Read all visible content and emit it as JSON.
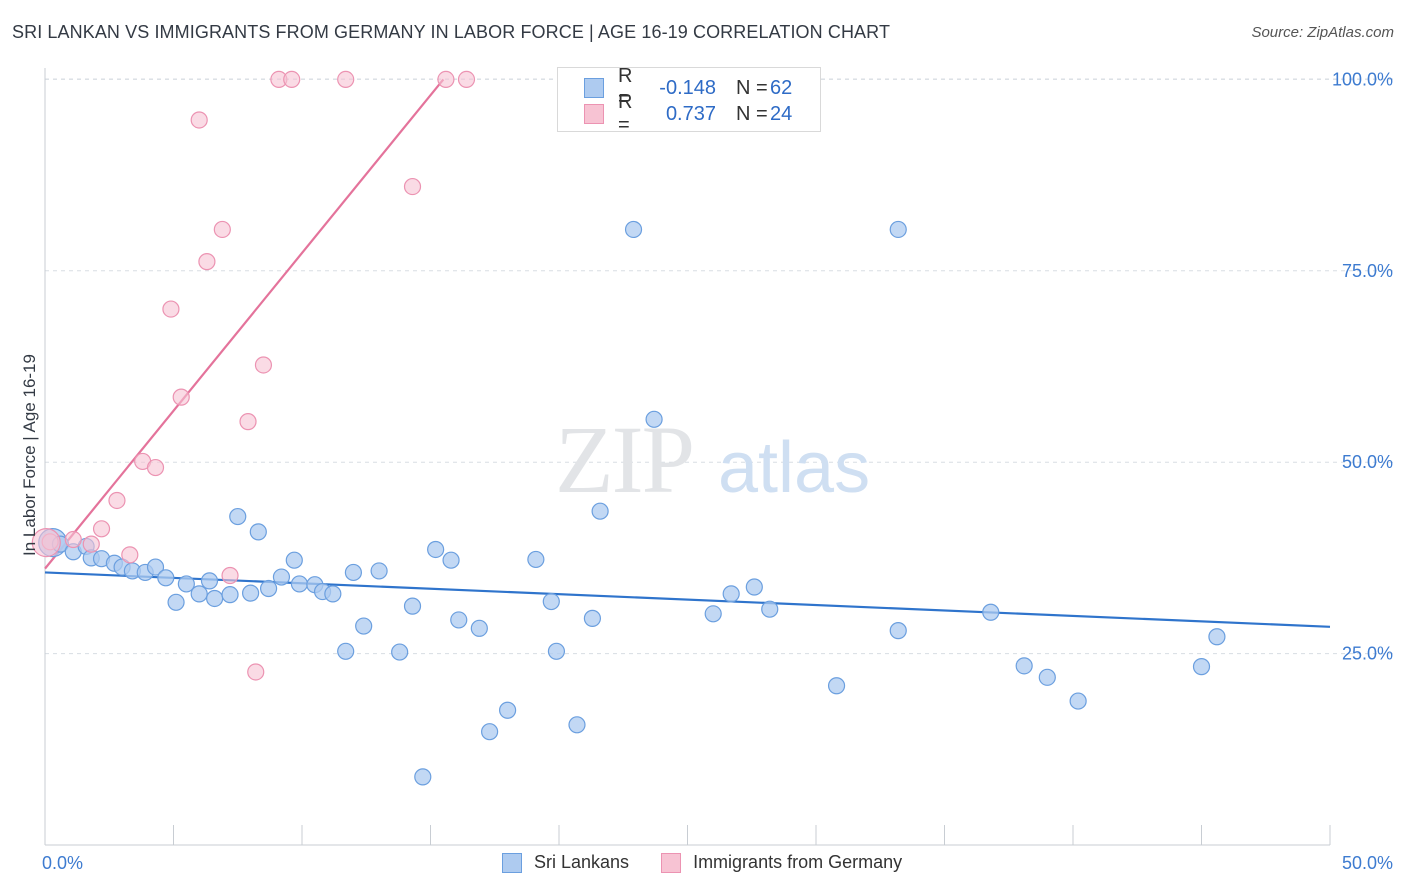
{
  "title": "SRI LANKAN VS IMMIGRANTS FROM GERMANY IN LABOR FORCE | AGE 16-19 CORRELATION CHART",
  "source": "Source: ZipAtlas.com",
  "watermark": {
    "zip": "ZIP",
    "atlas": "atlas"
  },
  "legend": {
    "rows": [
      {
        "r_label": "R =",
        "r_value": "-0.148",
        "n_label": "N =",
        "n_value": "62"
      },
      {
        "r_label": "R =",
        "r_value": "0.737",
        "n_label": "N =",
        "n_value": "24"
      }
    ]
  },
  "bottom_legend": [
    "Sri Lankans",
    "Immigrants from Germany"
  ],
  "colors": {
    "blue_fill": "#aecbf0",
    "blue_stroke": "#6b9fdf",
    "blue_line": "#2f74cc",
    "pink_fill": "#f7c3d3",
    "pink_stroke": "#ec93b2",
    "pink_line": "#e4739b",
    "tick_label": "#3d7bd0",
    "grid": "#d8dde3"
  },
  "chart_data": {
    "type": "scatter",
    "title": "SRI LANKAN VS IMMIGRANTS FROM GERMANY IN LABOR FORCE | AGE 16-19 CORRELATION CHART",
    "xlabel": "",
    "ylabel": "In Labor Force | Age 16-19",
    "xlim": [
      0,
      50
    ],
    "ylim": [
      0,
      105
    ],
    "x_tick_labels": [
      "0.0%",
      "50.0%"
    ],
    "y_ticks": [
      25,
      50,
      75,
      100
    ],
    "y_tick_labels": [
      "25.0%",
      "50.0%",
      "75.0%",
      "100.0%"
    ],
    "grid": true,
    "series": [
      {
        "name": "Sri Lankans",
        "color": "blue",
        "points": [
          [
            0.3,
            39.5
          ],
          [
            0.6,
            39.3
          ],
          [
            1.1,
            38.3
          ],
          [
            1.6,
            39.0
          ],
          [
            1.8,
            37.5
          ],
          [
            2.2,
            37.4
          ],
          [
            2.7,
            36.8
          ],
          [
            3.0,
            36.3
          ],
          [
            3.4,
            35.8
          ],
          [
            3.9,
            35.6
          ],
          [
            4.3,
            36.3
          ],
          [
            4.7,
            34.9
          ],
          [
            5.1,
            31.7
          ],
          [
            5.5,
            34.1
          ],
          [
            6.0,
            32.8
          ],
          [
            6.4,
            34.5
          ],
          [
            6.6,
            32.2
          ],
          [
            7.2,
            32.7
          ],
          [
            7.5,
            42.9
          ],
          [
            8.0,
            32.9
          ],
          [
            8.3,
            40.9
          ],
          [
            8.7,
            33.5
          ],
          [
            9.2,
            35.0
          ],
          [
            9.7,
            37.2
          ],
          [
            9.9,
            34.1
          ],
          [
            10.5,
            34.0
          ],
          [
            10.8,
            33.1
          ],
          [
            11.2,
            32.8
          ],
          [
            11.7,
            25.3
          ],
          [
            12.0,
            35.6
          ],
          [
            12.4,
            28.6
          ],
          [
            13.0,
            35.8
          ],
          [
            13.8,
            25.2
          ],
          [
            14.3,
            31.2
          ],
          [
            14.7,
            8.9
          ],
          [
            15.2,
            38.6
          ],
          [
            15.8,
            37.2
          ],
          [
            16.1,
            29.4
          ],
          [
            16.9,
            28.3
          ],
          [
            17.3,
            14.8
          ],
          [
            18.0,
            17.6
          ],
          [
            19.1,
            37.3
          ],
          [
            19.7,
            31.8
          ],
          [
            19.9,
            25.3
          ],
          [
            20.7,
            15.7
          ],
          [
            21.3,
            29.6
          ],
          [
            21.6,
            43.6
          ],
          [
            22.9,
            80.4
          ],
          [
            23.7,
            55.6
          ],
          [
            26.0,
            30.2
          ],
          [
            26.7,
            32.8
          ],
          [
            27.6,
            33.7
          ],
          [
            28.2,
            30.8
          ],
          [
            30.8,
            20.8
          ],
          [
            33.2,
            80.4
          ],
          [
            33.2,
            28.0
          ],
          [
            36.8,
            30.4
          ],
          [
            38.1,
            23.4
          ],
          [
            39.0,
            21.9
          ],
          [
            40.2,
            18.8
          ],
          [
            45.0,
            23.3
          ],
          [
            45.6,
            27.2
          ]
        ]
      },
      {
        "name": "Immigrants from Germany",
        "color": "pink",
        "points": [
          [
            0.2,
            39.6
          ],
          [
            1.1,
            39.9
          ],
          [
            1.8,
            39.3
          ],
          [
            2.2,
            41.3
          ],
          [
            2.8,
            45.0
          ],
          [
            3.3,
            37.9
          ],
          [
            3.8,
            50.1
          ],
          [
            4.3,
            49.3
          ],
          [
            4.9,
            70.0
          ],
          [
            5.3,
            58.5
          ],
          [
            6.0,
            94.7
          ],
          [
            6.3,
            76.2
          ],
          [
            6.9,
            80.4
          ],
          [
            7.2,
            35.2
          ],
          [
            7.9,
            55.3
          ],
          [
            8.2,
            22.6
          ],
          [
            8.5,
            62.7
          ],
          [
            9.1,
            100.0
          ],
          [
            9.6,
            100.0
          ],
          [
            11.7,
            100.0
          ],
          [
            14.3,
            86.0
          ],
          [
            15.6,
            100.0
          ],
          [
            16.4,
            100.0
          ],
          [
            0.05,
            39.5
          ]
        ]
      }
    ],
    "trend_lines": [
      {
        "series": "Sri Lankans",
        "from": [
          0,
          35.6
        ],
        "to": [
          50,
          28.5
        ]
      },
      {
        "series": "Immigrants from Germany",
        "from": [
          0,
          36.1
        ],
        "to": [
          15.5,
          100.0
        ]
      }
    ]
  }
}
